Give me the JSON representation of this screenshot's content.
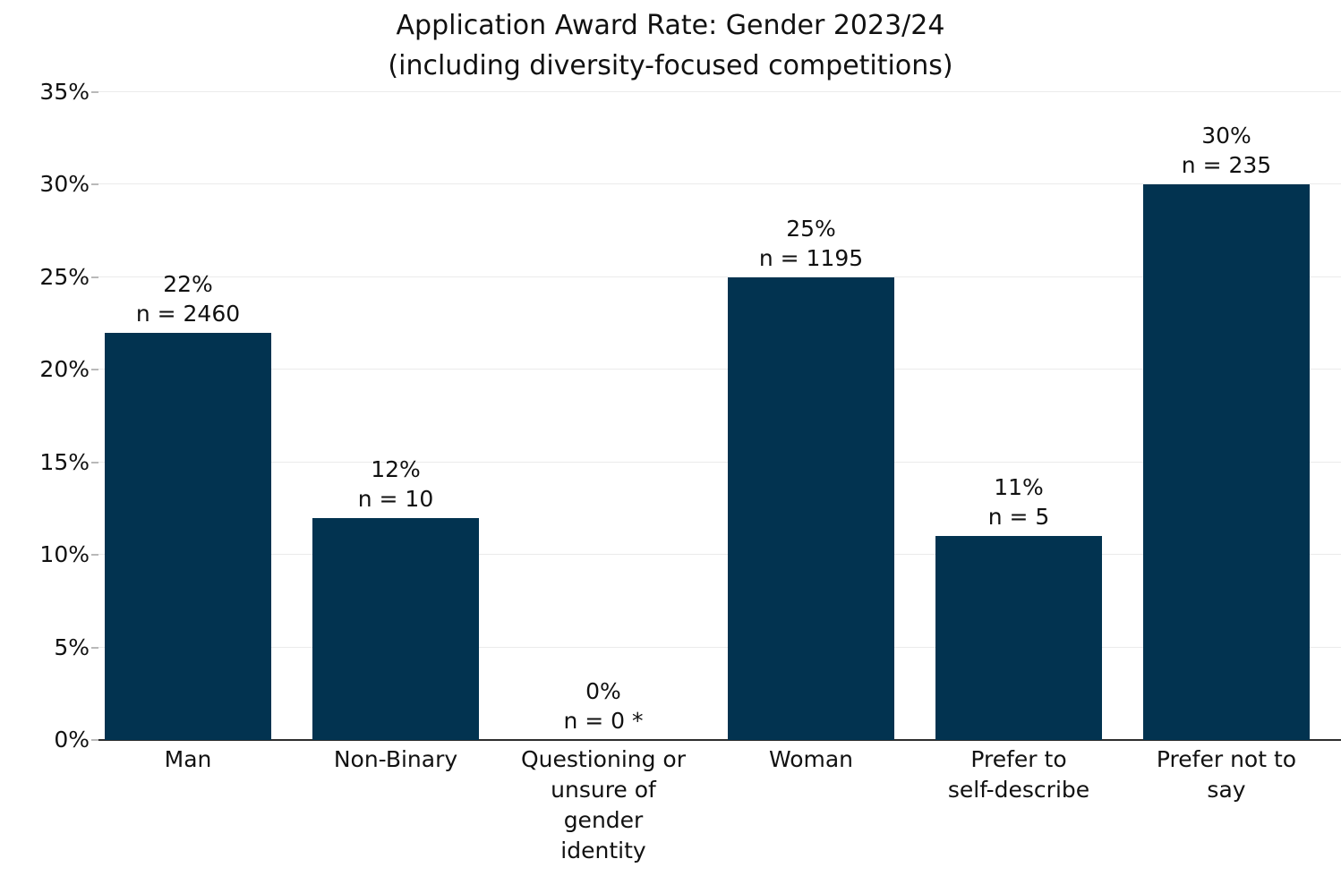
{
  "chart_data": {
    "type": "bar",
    "title": "Application Award Rate: Gender 2023/24",
    "subtitle": "(including diversity-focused competitions)",
    "categories": [
      "Man",
      "Non-Binary",
      "Questioning or\nunsure of\ngender\nidentity",
      "Woman",
      "Prefer to\nself-describe",
      "Prefer not to\nsay"
    ],
    "values": [
      22,
      12,
      0,
      25,
      11,
      30
    ],
    "n_values": [
      2460,
      10,
      0,
      1195,
      5,
      235
    ],
    "bar_labels": [
      [
        "22%",
        "n = 2460"
      ],
      [
        "12%",
        "n = 10"
      ],
      [
        "0%",
        "n = 0 *"
      ],
      [
        "25%",
        "n = 1195"
      ],
      [
        "11%",
        "n = 5"
      ],
      [
        "30%",
        "n = 235"
      ]
    ],
    "xlabel": "",
    "ylabel": "",
    "ylim": [
      0,
      35
    ],
    "ytick_values": [
      0,
      5,
      10,
      15,
      20,
      25,
      30,
      35
    ],
    "ytick_labels": [
      "0%",
      "5%",
      "10%",
      "15%",
      "20%",
      "25%",
      "30%",
      "35%"
    ],
    "grid": true,
    "legend": "none",
    "bar_color": "#023350",
    "gridline_color": "#ebebeb",
    "axis_color": "#2e2e2e",
    "text_color": "#111111",
    "background_color": "#ffffff"
  }
}
